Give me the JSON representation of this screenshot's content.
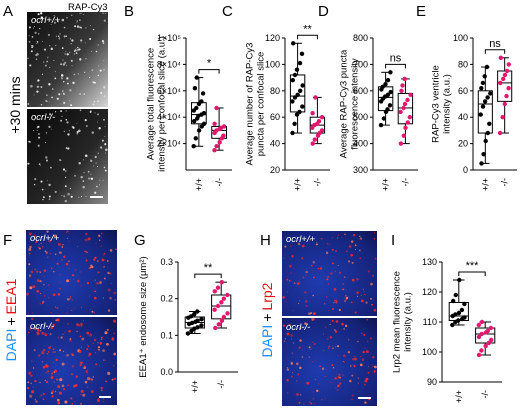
{
  "panels": {
    "A": {
      "letter": "A",
      "channel": "RAP-Cy3",
      "time": "+30 mins",
      "top_label": "ocrl+/+",
      "bottom_label": "ocrl-/-"
    },
    "F": {
      "letter": "F",
      "stain_dapi": "DAPI",
      "stain_plus": "+",
      "stain_marker": "EEA1",
      "top_label": "ocrl+/+",
      "bottom_label": "ocrl-/-"
    },
    "H": {
      "letter": "H",
      "stain_dapi": "DAPI",
      "stain_plus": "+",
      "stain_marker": "Lrp2",
      "top_label": "ocrl+/+",
      "bottom_label": "ocrl-/-"
    }
  },
  "colors": {
    "wt": "#000000",
    "ko": "#e0196e",
    "dapi": "#1e8fff",
    "marker": "#e8101a"
  },
  "chart_data": [
    {
      "panel": "B",
      "type": "box",
      "ylabel_lines": [
        "Average total fluorescence",
        "intensity per confocal slice (a.u.)"
      ],
      "categories": [
        "+/+",
        "-/-"
      ],
      "ylim": [
        0,
        100000
      ],
      "yticks": [
        20000,
        40000,
        60000,
        80000,
        100000
      ],
      "yticklabels": [
        "2×10⁴",
        "4×10⁴",
        "6×10⁴",
        "8×10⁴",
        "1×10⁵"
      ],
      "significance": "*",
      "series": [
        {
          "group": "+/+",
          "min": 18000,
          "q1": 35000,
          "median": 42000,
          "q3": 51000,
          "max": 70000,
          "points": [
            18000,
            24000,
            30000,
            33000,
            35000,
            37000,
            39000,
            41000,
            42000,
            43000,
            45000,
            47000,
            50000,
            52000,
            58000,
            62000,
            70000
          ]
        },
        {
          "group": "-/-",
          "min": 15000,
          "q1": 24000,
          "median": 30000,
          "q3": 33000,
          "max": 47000,
          "points": [
            15000,
            18000,
            21000,
            24000,
            26000,
            28000,
            30000,
            31000,
            32000,
            33000,
            35000,
            47000
          ]
        }
      ]
    },
    {
      "panel": "C",
      "type": "box",
      "ylabel_lines": [
        "Average number of RAP-Cy3",
        "puncta per confocal slice"
      ],
      "categories": [
        "+/+",
        "-/-"
      ],
      "ylim": [
        20,
        120
      ],
      "yticks": [
        20,
        40,
        60,
        80,
        100,
        120
      ],
      "yticklabels": [
        "20",
        "40",
        "60",
        "80",
        "100",
        "120"
      ],
      "significance": "**",
      "series": [
        {
          "group": "+/+",
          "min": 48,
          "q1": 64,
          "median": 76,
          "q3": 92,
          "max": 116,
          "points": [
            48,
            55,
            62,
            64,
            68,
            72,
            75,
            77,
            80,
            84,
            88,
            92,
            96,
            101,
            108,
            116
          ]
        },
        {
          "group": "-/-",
          "min": 40,
          "q1": 48,
          "median": 54,
          "q3": 60,
          "max": 75,
          "points": [
            40,
            43,
            46,
            48,
            50,
            52,
            54,
            55,
            57,
            60,
            63,
            75
          ]
        }
      ]
    },
    {
      "panel": "D",
      "type": "box",
      "ylabel_lines": [
        "Average RAP-Cy3 puncta",
        "fluorescence intensity"
      ],
      "categories": [
        "+/+",
        "-/-"
      ],
      "ylim": [
        300,
        800
      ],
      "yticks": [
        300,
        400,
        500,
        600,
        700,
        800
      ],
      "yticklabels": [
        "300",
        "400",
        "500",
        "600",
        "700",
        "800"
      ],
      "significance": "ns",
      "series": [
        {
          "group": "+/+",
          "min": 470,
          "q1": 525,
          "median": 575,
          "q3": 615,
          "max": 670,
          "points": [
            470,
            495,
            520,
            530,
            545,
            560,
            570,
            578,
            585,
            595,
            605,
            615,
            625,
            640,
            670
          ]
        },
        {
          "group": "-/-",
          "min": 400,
          "q1": 475,
          "median": 535,
          "q3": 590,
          "max": 645,
          "points": [
            400,
            430,
            460,
            480,
            500,
            520,
            535,
            550,
            565,
            585,
            600,
            620,
            645
          ]
        }
      ]
    },
    {
      "panel": "E",
      "type": "box",
      "ylabel_lines": [
        "RAP-Cy3 ventricle",
        "intensity (a.u.)"
      ],
      "categories": [
        "+/+",
        "-/-"
      ],
      "ylim": [
        0,
        100
      ],
      "yticks": [
        0,
        20,
        40,
        60,
        80,
        100
      ],
      "yticklabels": [
        "0",
        "20",
        "40",
        "60",
        "80",
        "100"
      ],
      "significance": "ns",
      "series": [
        {
          "group": "+/+",
          "min": 5,
          "q1": 28,
          "median": 50,
          "q3": 60,
          "max": 78,
          "points": [
            5,
            12,
            22,
            28,
            35,
            42,
            48,
            52,
            55,
            58,
            62,
            66,
            71,
            78
          ]
        },
        {
          "group": "-/-",
          "min": 28,
          "q1": 52,
          "median": 66,
          "q3": 75,
          "max": 85,
          "points": [
            28,
            40,
            50,
            56,
            62,
            66,
            69,
            72,
            75,
            80,
            85
          ]
        }
      ]
    },
    {
      "panel": "G",
      "type": "box",
      "ylabel_lines": [
        "EEA1⁺ endosome size (μm²)"
      ],
      "categories": [
        "+/+",
        "-/-"
      ],
      "ylim": [
        0,
        0.3
      ],
      "yticks": [
        0,
        0.1,
        0.2,
        0.3
      ],
      "yticklabels": [
        "0.0",
        "0.1",
        "0.2",
        "0.3"
      ],
      "significance": "**",
      "series": [
        {
          "group": "+/+",
          "min": 0.105,
          "q1": 0.12,
          "median": 0.135,
          "q3": 0.15,
          "max": 0.165,
          "points": [
            0.105,
            0.112,
            0.118,
            0.122,
            0.127,
            0.131,
            0.134,
            0.137,
            0.14,
            0.144,
            0.148,
            0.152,
            0.158,
            0.165
          ]
        },
        {
          "group": "-/-",
          "min": 0.12,
          "q1": 0.145,
          "median": 0.18,
          "q3": 0.21,
          "max": 0.245,
          "points": [
            0.12,
            0.13,
            0.14,
            0.15,
            0.16,
            0.17,
            0.18,
            0.19,
            0.2,
            0.21,
            0.22,
            0.23,
            0.245
          ]
        }
      ]
    },
    {
      "panel": "I",
      "type": "box",
      "ylabel_lines": [
        "Lrp2 mean fluorescence",
        "intensity (a.u.)"
      ],
      "categories": [
        "+/+",
        "-/-"
      ],
      "ylim": [
        90,
        130
      ],
      "yticks": [
        90,
        100,
        110,
        120,
        130
      ],
      "yticklabels": [
        "90",
        "100",
        "110",
        "120",
        "130"
      ],
      "significance": "***",
      "series": [
        {
          "group": "+/+",
          "min": 109,
          "q1": 110.5,
          "median": 112,
          "q3": 116.5,
          "max": 124,
          "points": [
            109,
            110,
            110.5,
            111,
            111.5,
            112,
            112.5,
            113,
            114,
            116,
            117,
            119,
            124
          ]
        },
        {
          "group": "-/-",
          "min": 99,
          "q1": 103,
          "median": 106,
          "q3": 108,
          "max": 110,
          "points": [
            99,
            100.5,
            102,
            103,
            104,
            105,
            106,
            106.5,
            107,
            108,
            109,
            110
          ]
        }
      ]
    }
  ]
}
